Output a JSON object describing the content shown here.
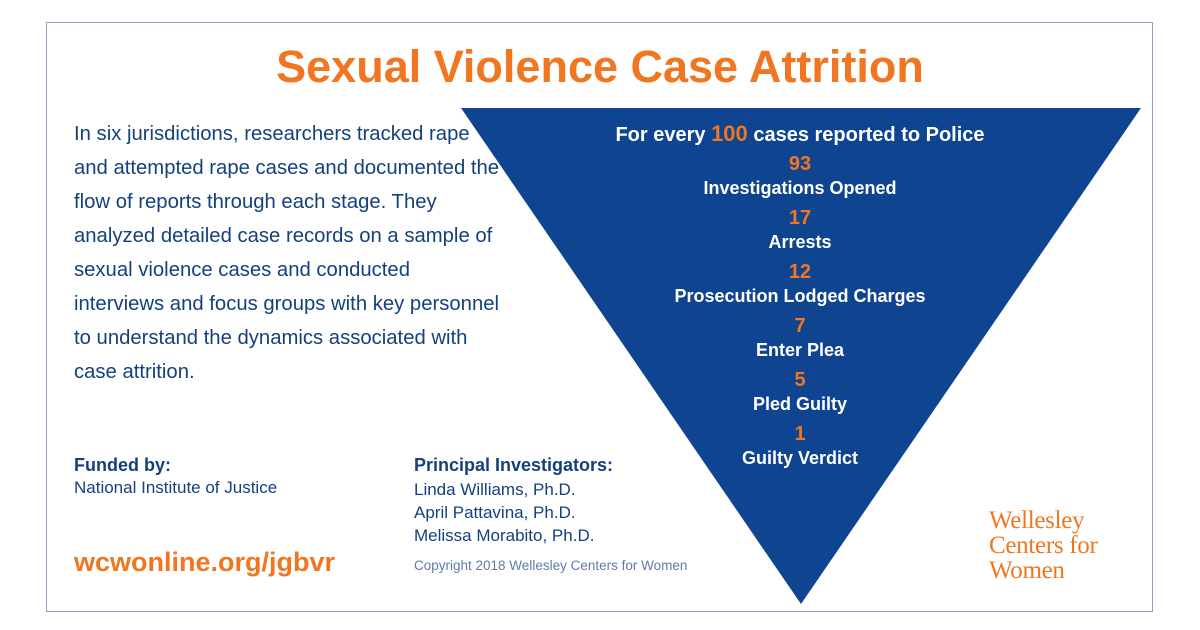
{
  "title": "Sexual Violence Case Attrition",
  "description": "In six jurisdictions, researchers tracked rape and attempted rape cases and documented the flow of reports through each stage. They analyzed detailed case records on a sample of sexual violence cases and conducted interviews and focus groups with key personnel to understand the dynamics associated with case attrition.",
  "funnel": {
    "header_prefix": "For every ",
    "header_number": "100",
    "header_suffix": " cases reported to Police",
    "stages": [
      {
        "value": "93",
        "label": "Investigations Opened"
      },
      {
        "value": "17",
        "label": "Arrests"
      },
      {
        "value": "12",
        "label": "Prosecution Lodged Charges"
      },
      {
        "value": "7",
        "label": "Enter Plea"
      },
      {
        "value": "5",
        "label": "Pled Guilty"
      },
      {
        "value": "1",
        "label": "Guilty Verdict"
      }
    ]
  },
  "funded": {
    "label": "Funded by:",
    "value": "National Institute of Justice"
  },
  "investigators": {
    "label": "Principal Investigators:",
    "names": [
      "Linda Williams, Ph.D.",
      "April Pattavina, Ph.D.",
      "Melissa Morabito, Ph.D."
    ]
  },
  "website": "wcwonline.org/jgbvr",
  "copyright": "Copyright 2018 Wellesley Centers for Women",
  "logo": {
    "lines": [
      "Wellesley",
      "Centers for",
      "Women"
    ]
  },
  "colors": {
    "navy": "#14407e",
    "funnel_blue": "#0f4490",
    "orange": "#f07622",
    "frame": "#8ea2c4"
  }
}
